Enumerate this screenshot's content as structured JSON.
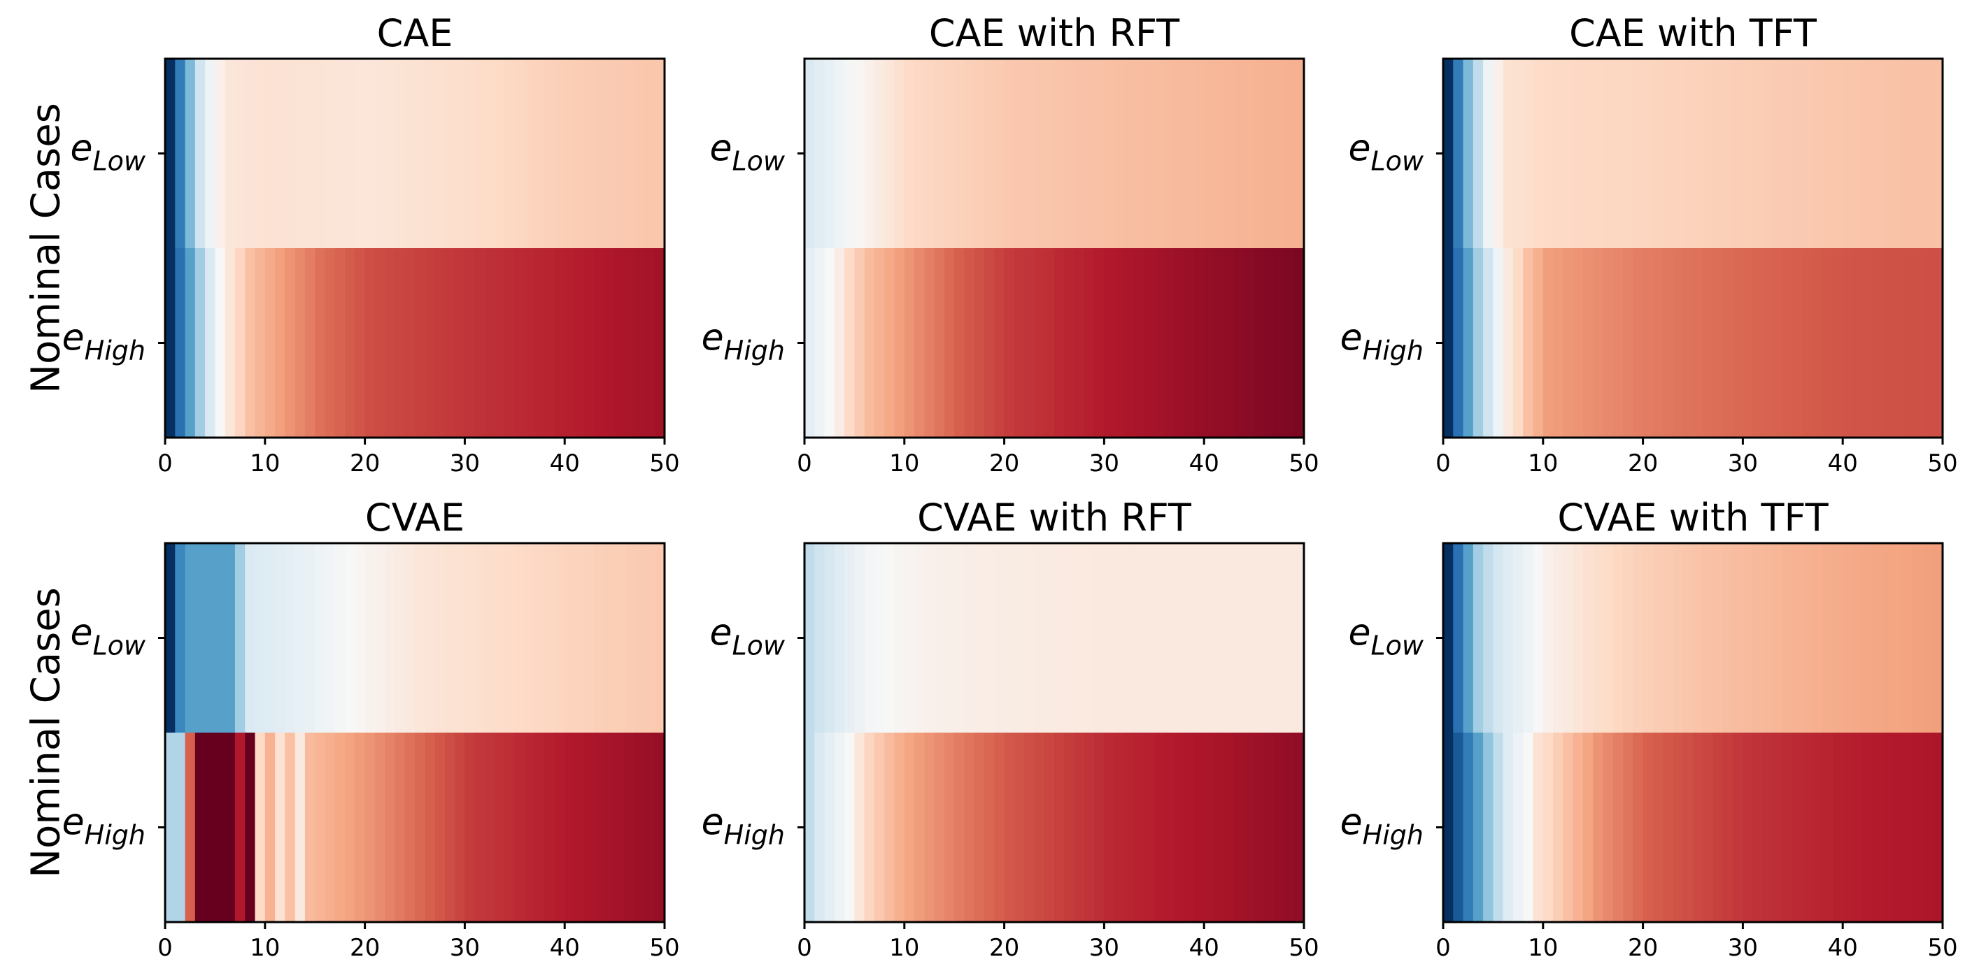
{
  "figure": {
    "row_labels": [
      "Nominal Cases",
      "Nominal Cases"
    ]
  },
  "chart_data": [
    {
      "type": "heatmap",
      "title": "CAE",
      "categories": [
        "e_Low",
        "e_High"
      ],
      "category_display": [
        {
          "base": "e",
          "sub": "Low"
        },
        {
          "base": "e",
          "sub": "High"
        }
      ],
      "x_range": [
        0,
        50
      ],
      "x_ticks": [
        0,
        10,
        20,
        30,
        40,
        50
      ],
      "colormap": "RdBu_r",
      "value_range": [
        -1,
        1
      ],
      "rows": [
        {
          "name": "e_Low",
          "values": [
            [
              0,
              -1.0
            ],
            [
              1,
              -0.7
            ],
            [
              2,
              -0.45
            ],
            [
              3,
              -0.2
            ],
            [
              4,
              -0.05
            ],
            [
              5,
              0.05
            ],
            [
              6,
              0.12
            ],
            [
              10,
              0.15
            ],
            [
              20,
              0.12
            ],
            [
              30,
              0.18
            ],
            [
              40,
              0.25
            ],
            [
              50,
              0.28
            ]
          ]
        },
        {
          "name": "e_High",
          "values": [
            [
              0,
              -1.0
            ],
            [
              1,
              -0.75
            ],
            [
              2,
              -0.55
            ],
            [
              3,
              -0.35
            ],
            [
              4,
              -0.15
            ],
            [
              5,
              0.0
            ],
            [
              6,
              0.12
            ],
            [
              7,
              0.22
            ],
            [
              8,
              0.3
            ],
            [
              10,
              0.38
            ],
            [
              15,
              0.55
            ],
            [
              20,
              0.65
            ],
            [
              30,
              0.72
            ],
            [
              40,
              0.78
            ],
            [
              50,
              0.85
            ]
          ]
        }
      ]
    },
    {
      "type": "heatmap",
      "title": "CAE with RFT",
      "categories": [
        "e_Low",
        "e_High"
      ],
      "category_display": [
        {
          "base": "e",
          "sub": "Low"
        },
        {
          "base": "e",
          "sub": "High"
        }
      ],
      "x_range": [
        0,
        50
      ],
      "x_ticks": [
        0,
        10,
        20,
        30,
        40,
        50
      ],
      "colormap": "RdBu_r",
      "value_range": [
        -1,
        1
      ],
      "rows": [
        {
          "name": "e_Low",
          "values": [
            [
              0,
              -0.15
            ],
            [
              3,
              -0.05
            ],
            [
              6,
              0.05
            ],
            [
              10,
              0.2
            ],
            [
              20,
              0.27
            ],
            [
              30,
              0.3
            ],
            [
              40,
              0.33
            ],
            [
              50,
              0.36
            ]
          ]
        },
        {
          "name": "e_High",
          "values": [
            [
              0,
              -0.1
            ],
            [
              1,
              -0.05
            ],
            [
              2,
              0.0
            ],
            [
              3,
              0.08
            ],
            [
              4,
              0.2
            ],
            [
              6,
              0.32
            ],
            [
              10,
              0.45
            ],
            [
              15,
              0.6
            ],
            [
              20,
              0.7
            ],
            [
              30,
              0.8
            ],
            [
              40,
              0.88
            ],
            [
              50,
              0.95
            ]
          ]
        }
      ]
    },
    {
      "type": "heatmap",
      "title": "CAE with TFT",
      "categories": [
        "e_Low",
        "e_High"
      ],
      "category_display": [
        {
          "base": "e",
          "sub": "Low"
        },
        {
          "base": "e",
          "sub": "High"
        }
      ],
      "x_range": [
        0,
        50
      ],
      "x_ticks": [
        0,
        10,
        20,
        30,
        40,
        50
      ],
      "colormap": "RdBu_r",
      "value_range": [
        -1,
        1
      ],
      "rows": [
        {
          "name": "e_Low",
          "values": [
            [
              0,
              -1.0
            ],
            [
              1,
              -0.7
            ],
            [
              2,
              -0.45
            ],
            [
              3,
              -0.25
            ],
            [
              4,
              -0.05
            ],
            [
              5,
              0.05
            ],
            [
              6,
              0.15
            ],
            [
              10,
              0.2
            ],
            [
              20,
              0.22
            ],
            [
              30,
              0.25
            ],
            [
              40,
              0.28
            ],
            [
              50,
              0.3
            ]
          ]
        },
        {
          "name": "e_High",
          "values": [
            [
              0,
              -1.0
            ],
            [
              1,
              -0.75
            ],
            [
              2,
              -0.55
            ],
            [
              3,
              -0.35
            ],
            [
              4,
              -0.2
            ],
            [
              5,
              -0.05
            ],
            [
              6,
              0.1
            ],
            [
              7,
              0.2
            ],
            [
              8,
              0.3
            ],
            [
              10,
              0.42
            ],
            [
              20,
              0.52
            ],
            [
              30,
              0.58
            ],
            [
              40,
              0.63
            ],
            [
              50,
              0.65
            ]
          ]
        }
      ]
    },
    {
      "type": "heatmap",
      "title": "CVAE",
      "categories": [
        "e_Low",
        "e_High"
      ],
      "category_display": [
        {
          "base": "e",
          "sub": "Low"
        },
        {
          "base": "e",
          "sub": "High"
        }
      ],
      "x_range": [
        0,
        50
      ],
      "x_ticks": [
        0,
        10,
        20,
        30,
        40,
        50
      ],
      "colormap": "RdBu_r",
      "value_range": [
        -1,
        1
      ],
      "rows": [
        {
          "name": "e_Low",
          "values": [
            [
              0,
              -1.0
            ],
            [
              1,
              -0.65
            ],
            [
              2,
              -0.55
            ],
            [
              6,
              -0.55
            ],
            [
              7,
              -0.35
            ],
            [
              8,
              -0.15
            ],
            [
              12,
              -0.1
            ],
            [
              18,
              0.0
            ],
            [
              25,
              0.12
            ],
            [
              35,
              0.2
            ],
            [
              45,
              0.25
            ],
            [
              50,
              0.27
            ]
          ]
        },
        {
          "name": "e_High",
          "values": [
            [
              0,
              -0.3
            ],
            [
              1,
              -0.3
            ],
            [
              2,
              0.6
            ],
            [
              3,
              1.0
            ],
            [
              6,
              1.0
            ],
            [
              7,
              0.8
            ],
            [
              8,
              1.0
            ],
            [
              9,
              0.2
            ],
            [
              10,
              0.35
            ],
            [
              11,
              0.15
            ],
            [
              12,
              0.3
            ],
            [
              13,
              0.1
            ],
            [
              14,
              0.32
            ],
            [
              20,
              0.45
            ],
            [
              30,
              0.7
            ],
            [
              40,
              0.8
            ],
            [
              50,
              0.88
            ]
          ]
        }
      ]
    },
    {
      "type": "heatmap",
      "title": "CVAE with RFT",
      "categories": [
        "e_Low",
        "e_High"
      ],
      "category_display": [
        {
          "base": "e",
          "sub": "Low"
        },
        {
          "base": "e",
          "sub": "High"
        }
      ],
      "x_range": [
        0,
        50
      ],
      "x_ticks": [
        0,
        10,
        20,
        30,
        40,
        50
      ],
      "colormap": "RdBu_r",
      "value_range": [
        -1,
        1
      ],
      "rows": [
        {
          "name": "e_Low",
          "values": [
            [
              0,
              -0.25
            ],
            [
              3,
              -0.12
            ],
            [
              6,
              -0.02
            ],
            [
              12,
              0.05
            ],
            [
              20,
              0.08
            ],
            [
              30,
              0.1
            ],
            [
              50,
              0.1
            ]
          ]
        },
        {
          "name": "e_High",
          "values": [
            [
              0,
              -0.25
            ],
            [
              1,
              -0.15
            ],
            [
              2,
              -0.1
            ],
            [
              3,
              -0.05
            ],
            [
              4,
              0.0
            ],
            [
              5,
              0.12
            ],
            [
              6,
              0.22
            ],
            [
              8,
              0.32
            ],
            [
              10,
              0.4
            ],
            [
              15,
              0.52
            ],
            [
              20,
              0.62
            ],
            [
              30,
              0.75
            ],
            [
              40,
              0.82
            ],
            [
              50,
              0.9
            ]
          ]
        }
      ]
    },
    {
      "type": "heatmap",
      "title": "CVAE with TFT",
      "categories": [
        "e_Low",
        "e_High"
      ],
      "category_display": [
        {
          "base": "e",
          "sub": "Low"
        },
        {
          "base": "e",
          "sub": "High"
        }
      ],
      "x_range": [
        0,
        50
      ],
      "x_ticks": [
        0,
        10,
        20,
        30,
        40,
        50
      ],
      "colormap": "RdBu_r",
      "value_range": [
        -1,
        1
      ],
      "rows": [
        {
          "name": "e_Low",
          "values": [
            [
              0,
              -1.0
            ],
            [
              1,
              -0.75
            ],
            [
              2,
              -0.55
            ],
            [
              3,
              -0.35
            ],
            [
              4,
              -0.25
            ],
            [
              5,
              -0.18
            ],
            [
              6,
              -0.12
            ],
            [
              8,
              -0.05
            ],
            [
              10,
              0.05
            ],
            [
              15,
              0.18
            ],
            [
              20,
              0.25
            ],
            [
              30,
              0.32
            ],
            [
              40,
              0.38
            ],
            [
              50,
              0.42
            ]
          ]
        },
        {
          "name": "e_High",
          "values": [
            [
              0,
              -1.0
            ],
            [
              1,
              -0.85
            ],
            [
              2,
              -0.7
            ],
            [
              3,
              -0.55
            ],
            [
              4,
              -0.4
            ],
            [
              5,
              -0.25
            ],
            [
              6,
              -0.12
            ],
            [
              8,
              0.0
            ],
            [
              9,
              0.15
            ],
            [
              12,
              0.3
            ],
            [
              15,
              0.45
            ],
            [
              20,
              0.6
            ],
            [
              30,
              0.72
            ],
            [
              40,
              0.78
            ],
            [
              50,
              0.82
            ]
          ]
        }
      ]
    }
  ]
}
